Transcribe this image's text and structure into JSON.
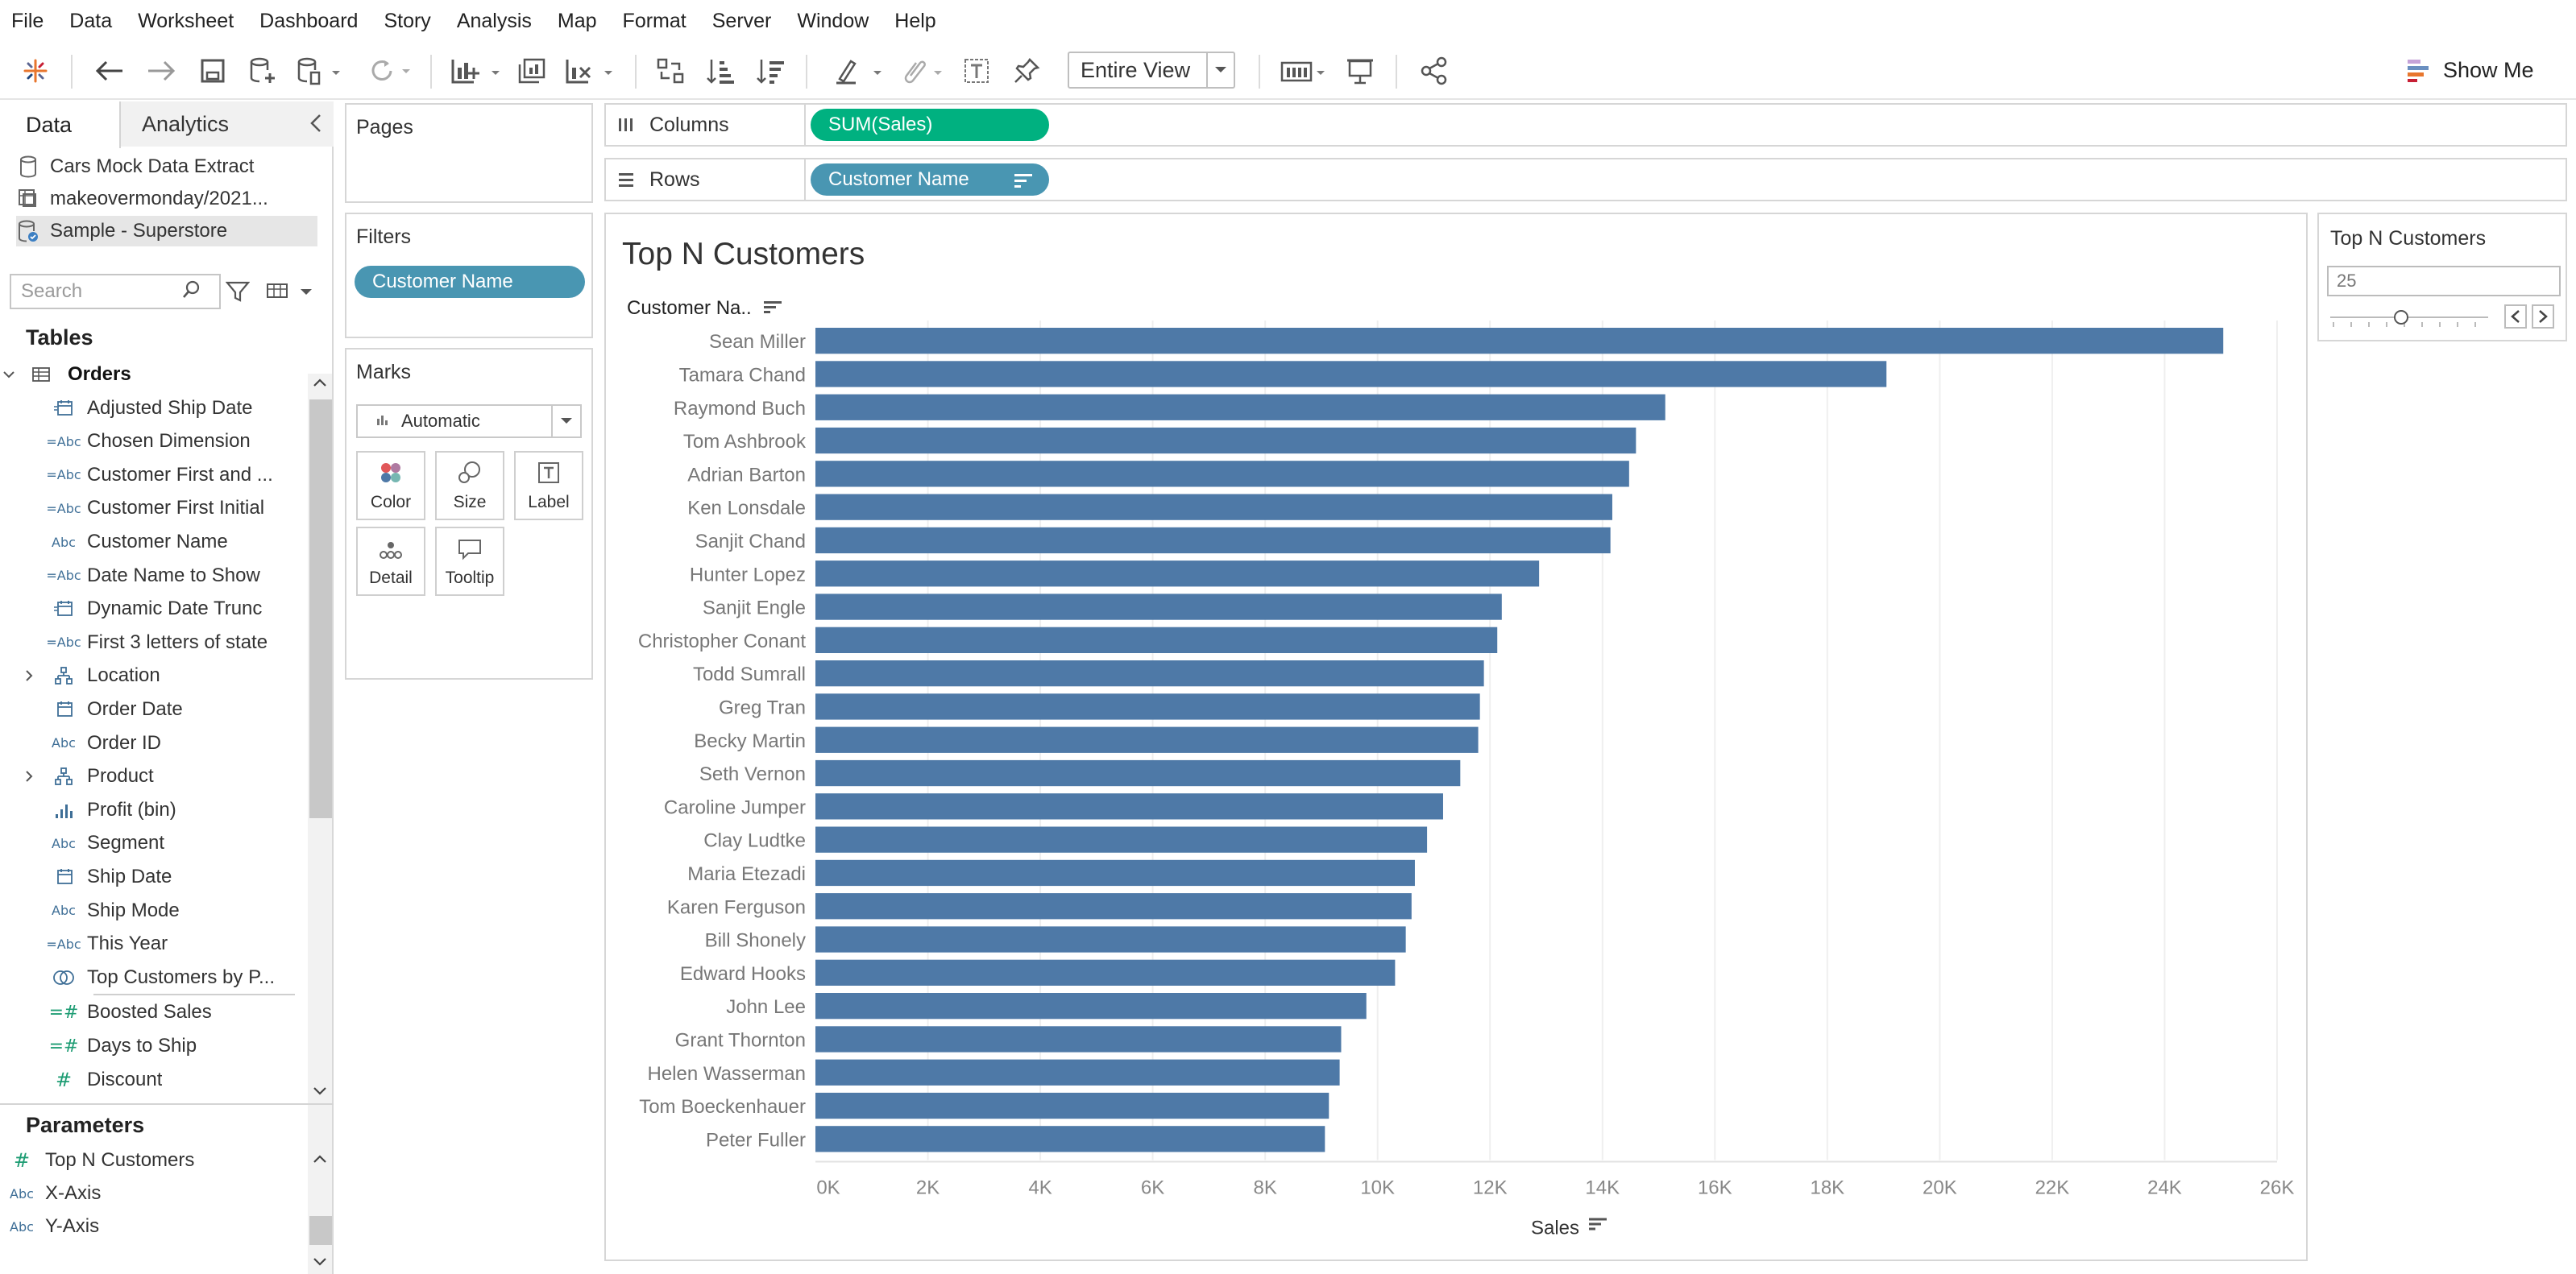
{
  "menu": [
    "File",
    "Data",
    "Worksheet",
    "Dashboard",
    "Story",
    "Analysis",
    "Map",
    "Format",
    "Server",
    "Window",
    "Help"
  ],
  "toolbar": {
    "view_select": "Entire View",
    "show_me": "Show Me"
  },
  "data_pane": {
    "tabs": [
      "Data",
      "Analytics"
    ],
    "data_sources": [
      {
        "name": "Cars Mock Data Extract",
        "icon": "database-icon"
      },
      {
        "name": "makeovermonday/2021...",
        "icon": "linked-source-icon"
      },
      {
        "name": "Sample - Superstore",
        "icon": "database-check-icon",
        "selected": true
      }
    ],
    "search_placeholder": "Search",
    "tables_title": "Tables",
    "fields": [
      {
        "name": "Orders",
        "type": "table",
        "expander": "⌄"
      },
      {
        "name": "Adjusted Ship Date",
        "type": "=date"
      },
      {
        "name": "Chosen Dimension",
        "type": "=Abc"
      },
      {
        "name": "Customer First and ...",
        "type": "=Abc"
      },
      {
        "name": "Customer First Initial",
        "type": "=Abc"
      },
      {
        "name": "Customer Name",
        "type": "Abc"
      },
      {
        "name": "Date Name to Show",
        "type": "=Abc"
      },
      {
        "name": "Dynamic Date Trunc",
        "type": "=date"
      },
      {
        "name": "First 3 letters of state",
        "type": "=Abc"
      },
      {
        "name": "Location",
        "type": "hierarchy",
        "expander": "›"
      },
      {
        "name": "Order Date",
        "type": "date"
      },
      {
        "name": "Order ID",
        "type": "Abc"
      },
      {
        "name": "Product",
        "type": "hierarchy",
        "expander": "›"
      },
      {
        "name": "Profit (bin)",
        "type": "bin"
      },
      {
        "name": "Segment",
        "type": "Abc"
      },
      {
        "name": "Ship Date",
        "type": "date"
      },
      {
        "name": "Ship Mode",
        "type": "Abc"
      },
      {
        "name": "This Year",
        "type": "=Abc"
      },
      {
        "name": "Top Customers by P...",
        "type": "set"
      },
      {
        "name": "Boosted Sales",
        "type": "=#"
      },
      {
        "name": "Days to Ship",
        "type": "=#"
      },
      {
        "name": "Discount",
        "type": "#"
      }
    ],
    "parameters_title": "Parameters",
    "parameters": [
      {
        "name": "Top N Customers",
        "type": "#"
      },
      {
        "name": "X-Axis",
        "type": "Abc"
      },
      {
        "name": "Y-Axis",
        "type": "Abc"
      }
    ]
  },
  "pages_title": "Pages",
  "filters": {
    "title": "Filters",
    "pills": [
      "Customer Name"
    ]
  },
  "marks": {
    "title": "Marks",
    "type": "Automatic",
    "buttons": [
      "Color",
      "Size",
      "Label",
      "Detail",
      "Tooltip"
    ]
  },
  "shelves": {
    "columns_label": "Columns",
    "columns_pill": "SUM(Sales)",
    "rows_label": "Rows",
    "rows_pill": "Customer Name"
  },
  "parameter_control": {
    "title": "Top N Customers",
    "value": "25"
  },
  "colors": {
    "bar": "#4e79a7",
    "dimension_pill": "#4996b2",
    "measure_pill": "#00b180"
  },
  "chart_data": {
    "type": "bar",
    "orientation": "horizontal",
    "title": "Top N Customers",
    "ylabel": "Customer Na..",
    "xlabel": "Sales",
    "xlim": [
      0,
      26000
    ],
    "xticks": [
      0,
      2000,
      4000,
      6000,
      8000,
      10000,
      12000,
      14000,
      16000,
      18000,
      20000,
      22000,
      24000,
      26000
    ],
    "xtick_labels": [
      "0K",
      "2K",
      "4K",
      "6K",
      "8K",
      "10K",
      "12K",
      "14K",
      "16K",
      "18K",
      "20K",
      "22K",
      "24K",
      "26K"
    ],
    "grid": true,
    "categories": [
      "Sean Miller",
      "Tamara Chand",
      "Raymond Buch",
      "Tom Ashbrook",
      "Adrian Barton",
      "Ken Lonsdale",
      "Sanjit Chand",
      "Hunter Lopez",
      "Sanjit Engle",
      "Christopher Conant",
      "Todd Sumrall",
      "Greg Tran",
      "Becky Martin",
      "Seth Vernon",
      "Caroline Jumper",
      "Clay Ludtke",
      "Maria Etezadi",
      "Karen Ferguson",
      "Bill Shonely",
      "Edward Hooks",
      "John Lee",
      "Grant Thornton",
      "Helen Wasserman",
      "Tom Boeckenhauer",
      "Peter Fuller"
    ],
    "values": [
      25043,
      19052,
      15117,
      14596,
      14474,
      14175,
      14142,
      12873,
      12209,
      12129,
      11891,
      11820,
      11790,
      11471,
      11165,
      10880,
      10663,
      10604,
      10501,
      10311,
      9800,
      9352,
      9325,
      9134,
      9063
    ]
  }
}
